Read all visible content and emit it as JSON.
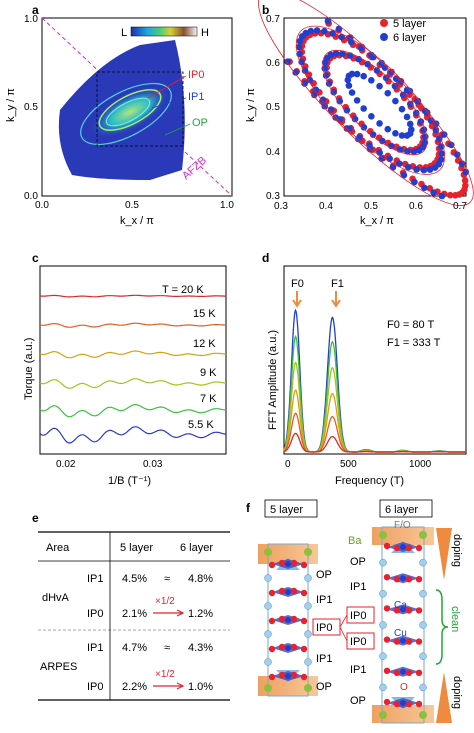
{
  "panels": {
    "a": {
      "label": "a",
      "xlabel": "k_x / π",
      "ylabel": "k_y / π",
      "xticks": [
        "0.0",
        "0.5",
        "1.0"
      ],
      "yticks": [
        "0.0",
        "0.5",
        "1.0"
      ],
      "colorbar_low": "L",
      "colorbar_high": "H",
      "annotations": [
        "IP0",
        "IP1",
        "OP",
        "AFZB"
      ]
    },
    "b": {
      "label": "b",
      "xlabel": "k_x / π",
      "ylabel": "k_y / π",
      "xticks": [
        "0.3",
        "0.4",
        "0.5",
        "0.6",
        "0.7"
      ],
      "yticks": [
        "0.3",
        "0.4",
        "0.5",
        "0.6",
        "0.7"
      ],
      "legend": [
        "5 layer",
        "6 layer"
      ]
    },
    "c": {
      "label": "c",
      "xlabel": "1/B (T⁻¹)",
      "ylabel": "Torque (a.u.)",
      "xticks": [
        "0.02",
        "0.03"
      ],
      "temps": [
        "T = 20 K",
        "15 K",
        "12 K",
        "9 K",
        "7 K",
        "5.5 K"
      ]
    },
    "d": {
      "label": "d",
      "xlabel": "Frequency (T)",
      "ylabel": "FFT Amplitude (a.u.)",
      "xticks": [
        "0",
        "500",
        "1000"
      ],
      "peaks": [
        "F0",
        "F1"
      ],
      "notes": [
        "F0 = 80 T",
        "F1 = 333 T"
      ]
    },
    "e": {
      "label": "e",
      "headers": [
        "Area",
        "5 layer",
        "6 layer"
      ],
      "groups": [
        {
          "name": "dHvA",
          "rows": [
            {
              "band": "IP1",
              "v5": "4.5%",
              "rel": "≈",
              "v6": "4.8%"
            },
            {
              "band": "IP0",
              "v5": "2.1%",
              "rel": "×1/2",
              "v6": "1.2%"
            }
          ]
        },
        {
          "name": "ARPES",
          "rows": [
            {
              "band": "IP1",
              "v5": "4.7%",
              "rel": "≈",
              "v6": "4.3%"
            },
            {
              "band": "IP0",
              "v5": "2.2%",
              "rel": "×1/2",
              "v6": "1.0%"
            }
          ]
        }
      ]
    },
    "f": {
      "label": "f",
      "titles": [
        "5 layer",
        "6 layer"
      ],
      "left_labels": [
        "OP",
        "IP1",
        "IP0",
        "IP1",
        "OP"
      ],
      "right_labels": [
        "OP",
        "IP1",
        "IP0",
        "IP0",
        "IP1",
        "OP"
      ],
      "atoms": [
        "Ba",
        "F/O",
        "Ca",
        "Cu",
        "O"
      ],
      "regions": [
        "doping",
        "clean",
        "doping"
      ]
    }
  },
  "colors": {
    "red": "#e8212b",
    "blue": "#1f3fd0",
    "magenta": "#d62ad0",
    "green": "#1fa83a",
    "orange": "#f08a3e",
    "teal": "#14b3a0"
  },
  "chart_data": [
    {
      "type": "scatter",
      "title": "",
      "xlabel": "kx / π",
      "ylabel": "ky / π",
      "xlim": [
        0.3,
        0.7
      ],
      "ylim": [
        0.3,
        0.7
      ],
      "legend": "top-right",
      "series": [
        {
          "name": "5 layer",
          "color": "#e8212b",
          "note": "three nested Fermi contours; outer one crosses (0.3,0.65)-(0.55,0.3)"
        },
        {
          "name": "6 layer",
          "color": "#1f3fd0",
          "note": "four nested Fermi contours"
        }
      ]
    },
    {
      "type": "line",
      "title": "",
      "xlabel": "1/B (T-1)",
      "ylabel": "Torque (a.u.)",
      "xlim": [
        0.017,
        0.038
      ],
      "series": [
        {
          "name": "T = 20 K",
          "color": "#d42b2b"
        },
        {
          "name": "15 K",
          "color": "#e06020"
        },
        {
          "name": "12 K",
          "color": "#d7a010"
        },
        {
          "name": "9 K",
          "color": "#a8c020"
        },
        {
          "name": "7 K",
          "color": "#3cc03c"
        },
        {
          "name": "5.5 K",
          "color": "#2a3ad0"
        }
      ]
    },
    {
      "type": "line",
      "title": "",
      "xlabel": "Frequency (T)",
      "ylabel": "FFT Amplitude (a.u.)",
      "xlim": [
        0,
        1250
      ],
      "peaks": [
        {
          "name": "F0",
          "x": 80
        },
        {
          "name": "F1",
          "x": 333
        }
      ],
      "series": [
        {
          "name": "5.5 K",
          "color": "#1f3fd0",
          "peak_values": [
            0.92,
            0.88
          ]
        },
        {
          "name": "7 K",
          "color": "#3cc03c",
          "peak_values": [
            0.75,
            0.72
          ]
        },
        {
          "name": "9 K",
          "color": "#a8c020",
          "peak_values": [
            0.58,
            0.55
          ]
        },
        {
          "name": "12 K",
          "color": "#d7a010",
          "peak_values": [
            0.4,
            0.38
          ]
        },
        {
          "name": "15 K",
          "color": "#e06020",
          "peak_values": [
            0.25,
            0.23
          ]
        },
        {
          "name": "20 K",
          "color": "#d42b2b",
          "peak_values": [
            0.12,
            0.1
          ]
        }
      ]
    }
  ]
}
